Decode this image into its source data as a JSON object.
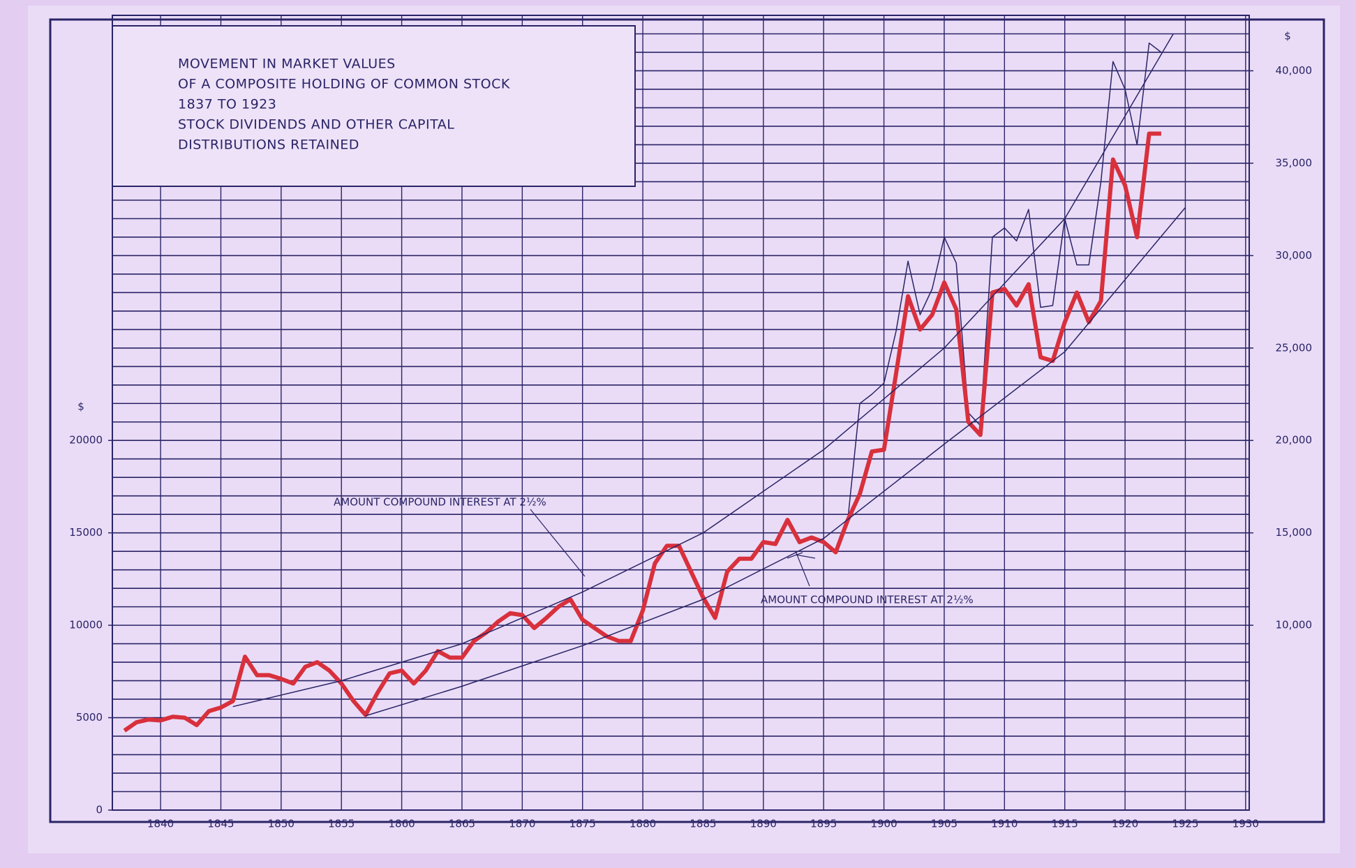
{
  "chart_data": {
    "type": "line",
    "title_lines": [
      "MOVEMENT IN MARKET VALUES",
      "OF A COMPOSITE HOLDING OF COMMON STOCK",
      "1837 TO 1923",
      "STOCK DIVIDENDS AND OTHER CAPITAL",
      "DISTRIBUTIONS RETAINED"
    ],
    "annotations": [
      "AMOUNT COMPOUND INTEREST AT 2½%",
      "AMOUNT COMPOUND INTEREST AT 2½%"
    ],
    "y_unit": "$",
    "y2_unit": "$",
    "x": [
      1837,
      1838,
      1839,
      1840,
      1841,
      1842,
      1843,
      1844,
      1845,
      1846,
      1847,
      1848,
      1849,
      1850,
      1851,
      1852,
      1853,
      1854,
      1855,
      1856,
      1857,
      1858,
      1859,
      1860,
      1861,
      1862,
      1863,
      1864,
      1865,
      1866,
      1867,
      1868,
      1869,
      1870,
      1871,
      1872,
      1873,
      1874,
      1875,
      1876,
      1877,
      1878,
      1879,
      1880,
      1881,
      1882,
      1883,
      1884,
      1885,
      1886,
      1887,
      1888,
      1889,
      1890,
      1891,
      1892,
      1893,
      1894,
      1895,
      1896,
      1897,
      1898,
      1899,
      1900,
      1901,
      1902,
      1903,
      1904,
      1905,
      1906,
      1907,
      1908,
      1909,
      1910,
      1911,
      1912,
      1913,
      1914,
      1915,
      1916,
      1917,
      1918,
      1919,
      1920,
      1921,
      1922,
      1923
    ],
    "series": [
      {
        "color": "#2a2466",
        "width": 1.5,
        "values": [
          null,
          null,
          null,
          null,
          null,
          null,
          null,
          null,
          null,
          null,
          null,
          null,
          null,
          null,
          null,
          null,
          null,
          null,
          null,
          null,
          null,
          null,
          null,
          null,
          null,
          null,
          null,
          null,
          null,
          null,
          null,
          null,
          null,
          null,
          null,
          null,
          null,
          null,
          null,
          null,
          null,
          null,
          null,
          null,
          null,
          null,
          null,
          null,
          null,
          null,
          null,
          null,
          null,
          null,
          null,
          null,
          null,
          null,
          null,
          null,
          15700,
          22000,
          22500,
          23100,
          25900,
          29700,
          26800,
          28200,
          31000,
          29600,
          21500,
          20800,
          31000,
          31500,
          30800,
          32500,
          27200,
          27300,
          32000,
          29500,
          29500,
          34000,
          40500,
          39000,
          36000,
          41500,
          41000
        ]
      },
      {
        "color": "#d8303c",
        "width": 6,
        "values": [
          4300,
          4750,
          4900,
          4850,
          5050,
          5000,
          4600,
          5350,
          5550,
          5900,
          8300,
          7300,
          7300,
          7100,
          6850,
          7750,
          8000,
          7550,
          6850,
          5900,
          5150,
          6350,
          7400,
          7550,
          6850,
          7550,
          8600,
          8250,
          8250,
          9150,
          9600,
          10200,
          10650,
          10550,
          9850,
          10400,
          11000,
          11400,
          10300,
          9850,
          9400,
          9150,
          9150,
          10800,
          13350,
          14300,
          14300,
          12900,
          11500,
          10400,
          12900,
          13600,
          13600,
          14500,
          14400,
          15700,
          14500,
          14750,
          14500,
          13950,
          15700,
          17100,
          19400,
          19500,
          23600,
          27800,
          26000,
          26800,
          28550,
          27100,
          21000,
          20300,
          28000,
          28200,
          27300,
          28450,
          24500,
          24300,
          26400,
          28000,
          26400,
          27550,
          35200,
          33800,
          31000,
          36600,
          36600
        ]
      },
      {
        "color": "#2a2466",
        "width": 1.5,
        "x": [
          1846,
          1855,
          1865,
          1875,
          1885,
          1895,
          1905,
          1915,
          1924
        ],
        "values": [
          5600,
          7000,
          9000,
          11800,
          15000,
          19500,
          25000,
          32000,
          42000
        ]
      },
      {
        "color": "#2a2466",
        "width": 1.5,
        "x": [
          1857,
          1865,
          1875,
          1885,
          1895,
          1905,
          1915,
          1925
        ],
        "values": [
          5100,
          6700,
          8900,
          11400,
          14700,
          19800,
          24800,
          32600
        ]
      }
    ],
    "xlim": [
      1836,
      1930.3
    ],
    "xticks": [
      1840,
      1845,
      1850,
      1855,
      1860,
      1865,
      1870,
      1875,
      1880,
      1885,
      1890,
      1895,
      1900,
      1905,
      1910,
      1915,
      1920,
      1925,
      1930
    ],
    "ylim": [
      0,
      43000
    ],
    "yticks": [
      0,
      5000,
      10000,
      15000,
      20000
    ],
    "y2lim": [
      0,
      43000
    ],
    "y2ticks": [
      {
        "value": 10000,
        "label": "10,000"
      },
      {
        "value": 15000,
        "label": "15,000"
      },
      {
        "value": 20000,
        "label": "20,000"
      },
      {
        "value": 25000,
        "label": "25,000"
      },
      {
        "value": 30000,
        "label": "30,000"
      },
      {
        "value": 35000,
        "label": "35,000"
      },
      {
        "value": 40000,
        "label": "40,000"
      }
    ],
    "minor_yticks": [
      1000,
      2000,
      3000,
      4000,
      5000,
      6000,
      7000,
      8000,
      9000,
      10000,
      11000,
      12000,
      13000,
      14000,
      15000,
      16000,
      17000,
      18000,
      19000,
      20000,
      21000,
      22000,
      23000,
      24000,
      25000,
      26000,
      27000,
      28000,
      29000,
      30000,
      31000,
      32000,
      33000,
      34000,
      35000,
      36000,
      37000,
      38000,
      39000,
      40000,
      41000,
      42000
    ],
    "grid": true
  }
}
